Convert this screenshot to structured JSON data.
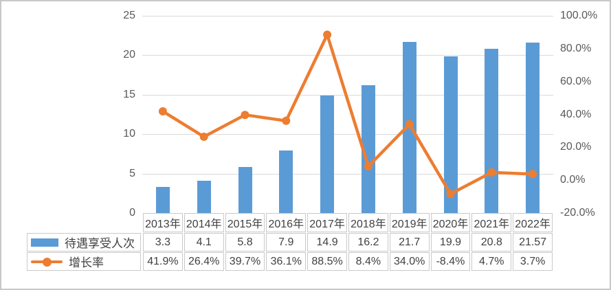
{
  "chart_data": {
    "type": "combo-bar-line",
    "categories": [
      "2013年",
      "2014年",
      "2015年",
      "2016年",
      "2017年",
      "2018年",
      "2019年",
      "2020年",
      "2021年",
      "2022年"
    ],
    "series": [
      {
        "name": "待遇享受人次",
        "type": "bar",
        "axis": "left",
        "color": "#5B9BD5",
        "values": [
          3.3,
          4.1,
          5.8,
          7.9,
          14.9,
          16.2,
          21.7,
          19.9,
          20.8,
          21.57
        ],
        "labels": [
          "3.3",
          "4.1",
          "5.8",
          "7.9",
          "14.9",
          "16.2",
          "21.7",
          "19.9",
          "20.8",
          "21.57"
        ]
      },
      {
        "name": "增长率",
        "type": "line",
        "axis": "right",
        "color": "#ED7D31",
        "values": [
          41.9,
          26.4,
          39.7,
          36.1,
          88.5,
          8.4,
          34.0,
          -8.4,
          4.7,
          3.7
        ],
        "labels": [
          "41.9%",
          "26.4%",
          "39.7%",
          "36.1%",
          "88.5%",
          "8.4%",
          "34.0%",
          "-8.4%",
          "4.7%",
          "3.7%"
        ]
      }
    ],
    "left_axis": {
      "min": 0,
      "max": 25,
      "ticks": [
        "25",
        "20",
        "15",
        "10",
        "5",
        "0"
      ]
    },
    "right_axis": {
      "min": -20,
      "max": 100,
      "ticks": [
        "100.0%",
        "80.0%",
        "60.0%",
        "40.0%",
        "20.0%",
        "0.0%",
        "-20.0%"
      ]
    },
    "grid": true,
    "legend_position": "table-left",
    "data_table": true
  },
  "colors": {
    "bar": "#5B9BD5",
    "line": "#ED7D31",
    "gridline": "#D9D9D9",
    "frame_border": "#C8C8C8",
    "table_border": "#C9C9C9",
    "axis_text": "#595959",
    "table_text": "#404040"
  }
}
